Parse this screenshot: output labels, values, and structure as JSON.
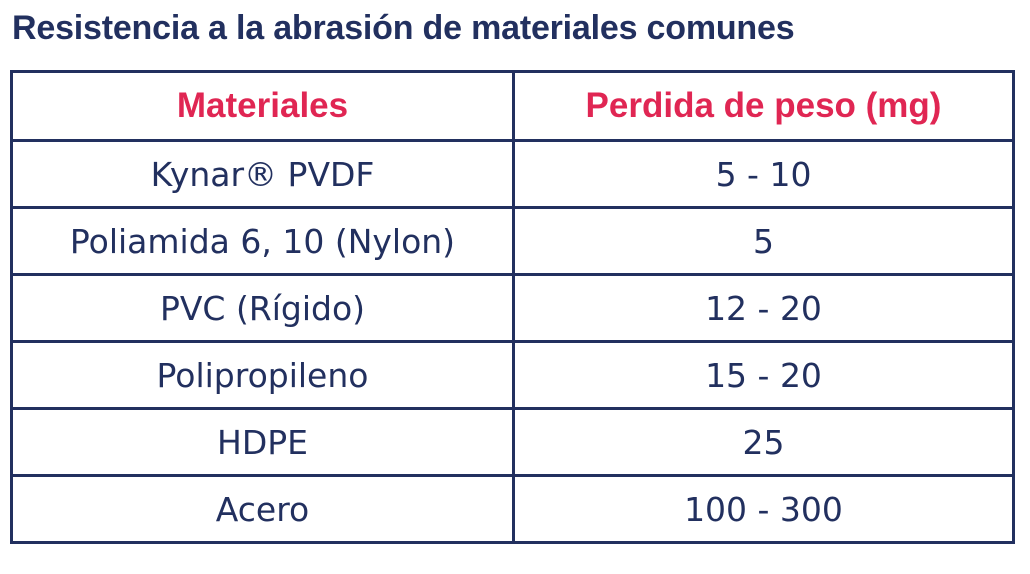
{
  "chart_data": {
    "type": "table",
    "title": "Resistencia a la abrasión de materiales comunes",
    "columns": [
      "Materiales",
      "Perdida de peso (mg)"
    ],
    "rows": [
      [
        "Kynar® PVDF",
        "5 - 10"
      ],
      [
        "Poliamida 6, 10 (Nylon)",
        "5"
      ],
      [
        "PVC (Rígido)",
        "12 - 20"
      ],
      [
        "Polipropileno",
        "15 - 20"
      ],
      [
        "HDPE",
        "25"
      ],
      [
        "Acero",
        "100 - 300"
      ]
    ]
  },
  "colors": {
    "title": "#22305f",
    "header_text": "#e02653",
    "cell_text": "#22305f",
    "border": "#22305f"
  }
}
